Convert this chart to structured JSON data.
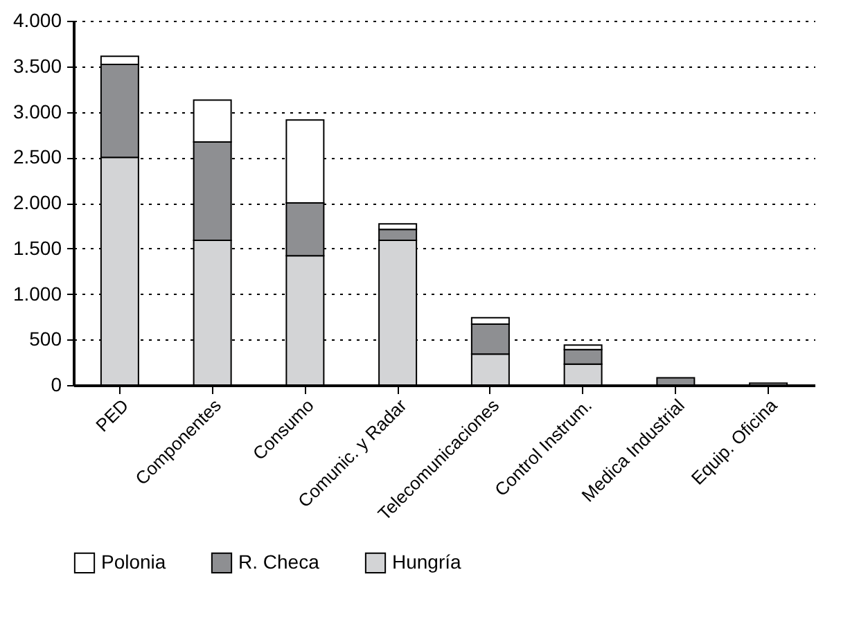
{
  "chart_data": {
    "type": "bar",
    "stacked": true,
    "categories": [
      "PED",
      "Componentes",
      "Consumo",
      "Comunic. y Radar",
      "Telecomunicaciones",
      "Control Instrum.",
      "Medica Industrial",
      "Equip. Oficina"
    ],
    "series": [
      {
        "name": "Hungría",
        "color": "#d3d4d6",
        "values": [
          2500,
          1590,
          1420,
          1590,
          340,
          230,
          null,
          20
        ]
      },
      {
        "name": "R. Checa",
        "color": "#8e8f92",
        "values": [
          1020,
          1080,
          580,
          120,
          330,
          160,
          80,
          null
        ]
      },
      {
        "name": "Polonia",
        "color": "#ffffff",
        "values": [
          90,
          460,
          910,
          60,
          70,
          50,
          null,
          null
        ]
      }
    ],
    "ylim": [
      0,
      4000
    ],
    "yticks": [
      0,
      500,
      {
        "value": 1000,
        "label": "1.000"
      },
      {
        "value": 1500,
        "label": "1.500"
      },
      {
        "value": 2000,
        "label": "2.000"
      },
      {
        "value": 2500,
        "label": "2.500"
      },
      {
        "value": 3000,
        "label": "3.000"
      },
      {
        "value": 3500,
        "label": "3.500"
      },
      {
        "value": 4000,
        "label": "4.000"
      }
    ],
    "grid": "y",
    "legend": "bottom"
  }
}
